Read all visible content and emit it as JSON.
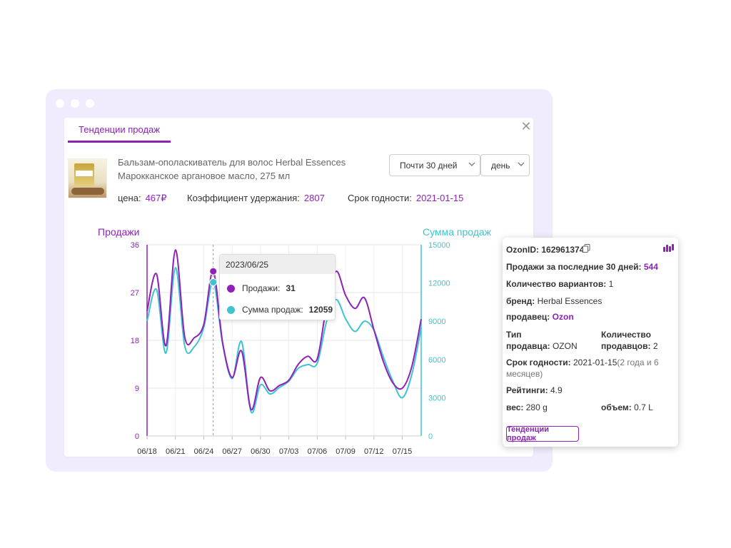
{
  "window": {
    "tab_label": "Тенденции продаж"
  },
  "product": {
    "name_line1": "Бальзам-ополаскиватель для волос Herbal Essences",
    "name_line2": "Марокканское аргановое масло, 275 мл",
    "price_label": "цена:",
    "price_value": "467₽",
    "retention_label": "Коэффициент удержания:",
    "retention_value": "2807",
    "expiry_label": "Срок годности:",
    "expiry_value": "2021-01-15"
  },
  "filters": {
    "period": "Почти 30 дней",
    "granularity": "день"
  },
  "chart_data": {
    "type": "line",
    "left_axis_title": "Продажи",
    "right_axis_title": "Сумма продаж",
    "x": [
      "06/18",
      "06/19",
      "06/20",
      "06/21",
      "06/22",
      "06/23",
      "06/24",
      "06/25",
      "06/26",
      "06/27",
      "06/28",
      "06/29",
      "06/30",
      "07/01",
      "07/02",
      "07/03",
      "07/04",
      "07/05",
      "07/06",
      "07/07",
      "07/08",
      "07/09",
      "07/10",
      "07/11",
      "07/12",
      "07/13",
      "07/14",
      "07/15",
      "07/16",
      "07/17"
    ],
    "x_tick_labels": [
      "06/18",
      "06/21",
      "06/24",
      "06/27",
      "06/30",
      "07/03",
      "07/06",
      "07/09",
      "07/12",
      "07/15"
    ],
    "left_ticks": [
      0,
      9,
      18,
      27,
      36
    ],
    "right_ticks": [
      0,
      3000,
      6000,
      9000,
      12000,
      15000
    ],
    "ylim_left": [
      0,
      36
    ],
    "ylim_right": [
      0,
      15000
    ],
    "series": [
      {
        "name": "Продажи",
        "axis": "left",
        "color": "#8e22b8",
        "values": [
          23.5,
          30.5,
          17,
          35,
          18.5,
          18.5,
          21,
          31,
          17.5,
          11,
          16,
          5,
          11,
          8.5,
          9.5,
          10.5,
          13.5,
          15,
          14.5,
          24.5,
          31,
          26.5,
          24,
          26,
          20,
          14,
          10,
          9,
          13,
          22
        ]
      },
      {
        "name": "Сумма продаж",
        "axis": "right",
        "color": "#3fc4cf",
        "values": [
          9000,
          11500,
          6500,
          13200,
          7000,
          7000,
          8500,
          12059,
          7200,
          4500,
          7400,
          1900,
          4000,
          3300,
          3800,
          4300,
          5300,
          5600,
          5700,
          9000,
          10700,
          9200,
          8200,
          9000,
          8300,
          6200,
          4300,
          3000,
          4800,
          8500
        ]
      }
    ]
  },
  "tooltip": {
    "date": "2023/06/25",
    "rows": [
      {
        "label": "Продажи:",
        "value": "31",
        "color": "#8e22b8"
      },
      {
        "label": "Сумма продаж:",
        "value": "12059",
        "color": "#3fc4cf"
      }
    ]
  },
  "card": {
    "ozon_id_label": "OzonID:",
    "ozon_id_value": "162961374",
    "sales30_label": "Продажи за последние 30 дней:",
    "sales30_value": "544",
    "variants_label": "Количество вариантов:",
    "variants_value": "1",
    "brand_label": "бренд:",
    "brand_value": "Herbal Essences",
    "seller_label": "продавец:",
    "seller_value": "Ozon",
    "seller_type_label_1": "Тип",
    "seller_type_label_2": "продавца:",
    "seller_type_value": "OZON",
    "sellers_count_label_1": "Количество",
    "sellers_count_label_2": "продавцов:",
    "sellers_count_value": "2",
    "expiry_label": "Срок годности:",
    "expiry_value": "2021-01-15",
    "expiry_note_1": "(2 года и 6",
    "expiry_note_2": "месяцев)",
    "ratings_label": "Рейтинги:",
    "ratings_value": "4.9",
    "weight_label": "вес:",
    "weight_value": "280 g",
    "volume_label": "объем:",
    "volume_value": "0.7 L",
    "trend_button": "Тенденции продаж"
  },
  "colors": {
    "accent": "#8e22b8",
    "secondary": "#3fc4cf",
    "frame": "#f1ecfd"
  }
}
